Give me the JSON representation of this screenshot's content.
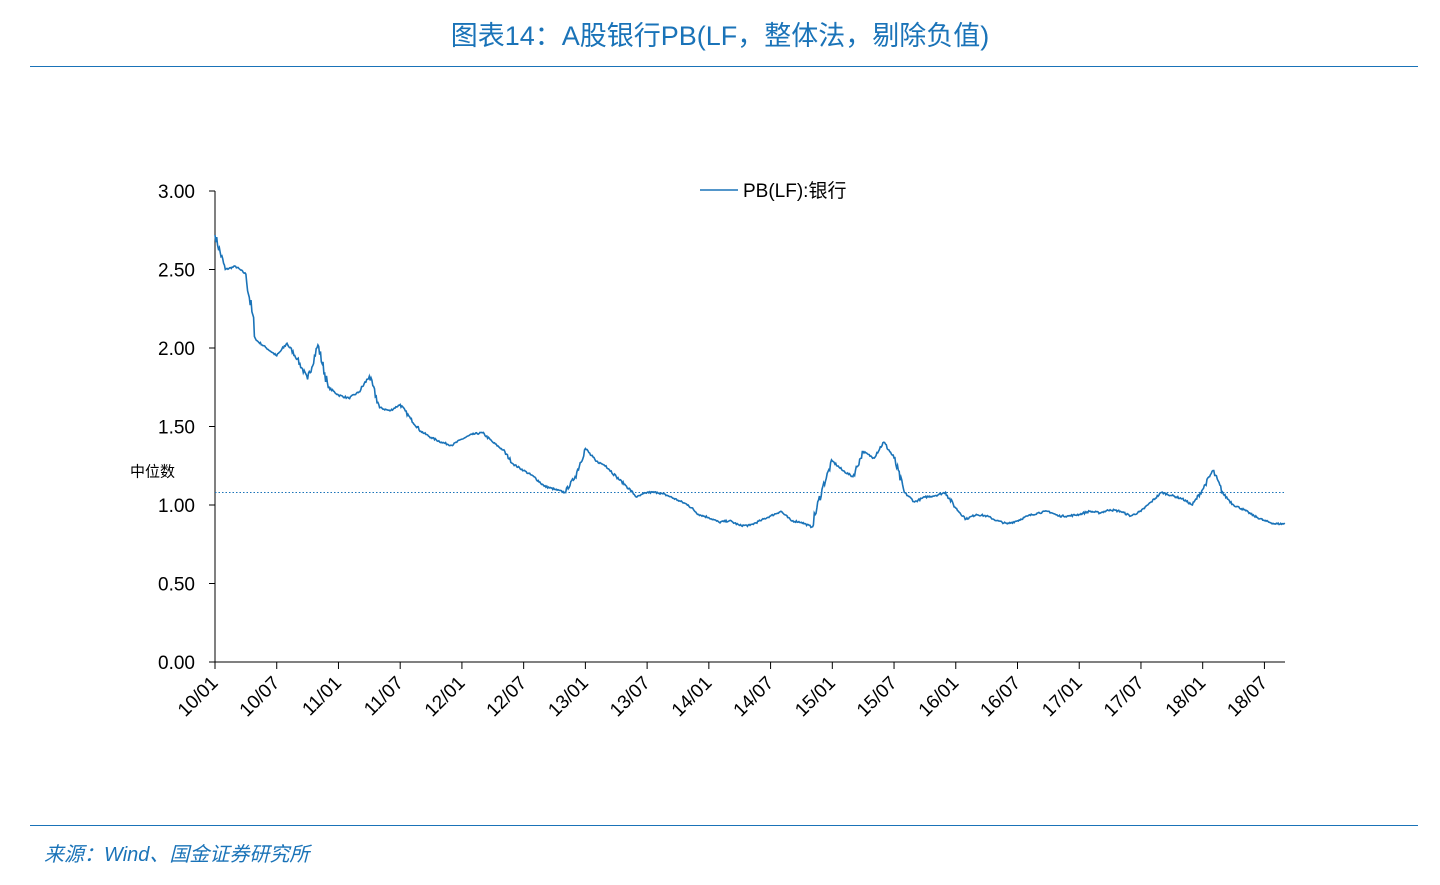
{
  "title": "图表14：A股银行PB(LF，整体法，剔除负值)",
  "source": "来源：Wind、国金证券研究所",
  "chart_data": {
    "type": "line",
    "legend": {
      "label": "PB(LF):银行",
      "position": "top-center"
    },
    "median_label": "中位数",
    "median_value": 1.08,
    "ylim": [
      0,
      3.0
    ],
    "y_ticks": [
      "0.00",
      "0.50",
      "1.00",
      "1.50",
      "2.00",
      "2.50",
      "3.00"
    ],
    "x_ticks": [
      "10/01",
      "10/07",
      "11/01",
      "11/07",
      "12/01",
      "12/07",
      "13/01",
      "13/07",
      "14/01",
      "14/07",
      "15/01",
      "15/07",
      "16/01",
      "16/07",
      "17/01",
      "17/07",
      "18/01",
      "18/07"
    ],
    "x_range": [
      "2010-01",
      "2018-09"
    ],
    "series": [
      {
        "color": "#1a73b8",
        "x": [
          "2010-01",
          "2010-02",
          "2010-03",
          "2010-04",
          "2010-05",
          "2010-06",
          "2010-07",
          "2010-08",
          "2010-09",
          "2010-10",
          "2010-11",
          "2010-12",
          "2011-01",
          "2011-02",
          "2011-03",
          "2011-04",
          "2011-05",
          "2011-06",
          "2011-07",
          "2011-08",
          "2011-09",
          "2011-10",
          "2011-11",
          "2011-12",
          "2012-01",
          "2012-02",
          "2012-03",
          "2012-04",
          "2012-05",
          "2012-06",
          "2012-07",
          "2012-08",
          "2012-09",
          "2012-10",
          "2012-11",
          "2012-12",
          "2013-01",
          "2013-02",
          "2013-03",
          "2013-04",
          "2013-05",
          "2013-06",
          "2013-07",
          "2013-08",
          "2013-09",
          "2013-10",
          "2013-11",
          "2013-12",
          "2014-01",
          "2014-02",
          "2014-03",
          "2014-04",
          "2014-05",
          "2014-06",
          "2014-07",
          "2014-08",
          "2014-09",
          "2014-10",
          "2014-11",
          "2014-12",
          "2015-01",
          "2015-02",
          "2015-03",
          "2015-04",
          "2015-05",
          "2015-06",
          "2015-07",
          "2015-08",
          "2015-09",
          "2015-10",
          "2015-11",
          "2015-12",
          "2016-01",
          "2016-02",
          "2016-03",
          "2016-04",
          "2016-05",
          "2016-06",
          "2016-07",
          "2016-08",
          "2016-09",
          "2016-10",
          "2016-11",
          "2016-12",
          "2017-01",
          "2017-02",
          "2017-03",
          "2017-04",
          "2017-05",
          "2017-06",
          "2017-07",
          "2017-08",
          "2017-09",
          "2017-10",
          "2017-11",
          "2017-12",
          "2018-01",
          "2018-02",
          "2018-03",
          "2018-04",
          "2018-05",
          "2018-06",
          "2018-07",
          "2018-08",
          "2018-09"
        ],
        "values": [
          2.72,
          2.5,
          2.52,
          2.47,
          2.05,
          2.0,
          1.95,
          2.03,
          1.93,
          1.8,
          2.02,
          1.75,
          1.7,
          1.68,
          1.72,
          1.82,
          1.62,
          1.6,
          1.64,
          1.55,
          1.47,
          1.43,
          1.4,
          1.38,
          1.42,
          1.45,
          1.46,
          1.4,
          1.35,
          1.26,
          1.22,
          1.18,
          1.12,
          1.1,
          1.08,
          1.18,
          1.36,
          1.28,
          1.25,
          1.18,
          1.12,
          1.05,
          1.08,
          1.08,
          1.06,
          1.03,
          1.0,
          0.94,
          0.92,
          0.89,
          0.9,
          0.87,
          0.87,
          0.9,
          0.93,
          0.96,
          0.9,
          0.89,
          0.86,
          1.1,
          1.28,
          1.22,
          1.18,
          1.34,
          1.3,
          1.4,
          1.3,
          1.08,
          1.02,
          1.05,
          1.06,
          1.08,
          0.98,
          0.91,
          0.94,
          0.93,
          0.9,
          0.88,
          0.9,
          0.93,
          0.95,
          0.96,
          0.93,
          0.93,
          0.94,
          0.96,
          0.95,
          0.97,
          0.96,
          0.93,
          0.96,
          1.02,
          1.08,
          1.06,
          1.04,
          1.0,
          1.1,
          1.22,
          1.07,
          1.0,
          0.97,
          0.93,
          0.9,
          0.88,
          0.88
        ]
      }
    ]
  }
}
